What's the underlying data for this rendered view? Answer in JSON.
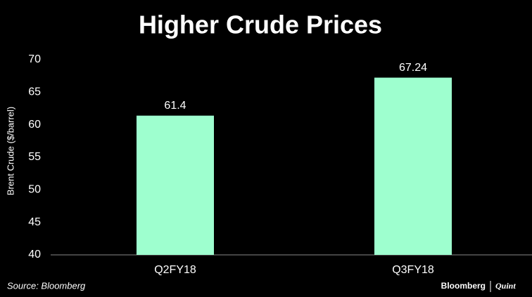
{
  "chart_data": {
    "type": "bar",
    "title": "Higher Crude Prices",
    "y_label": "Brent Crude ($/barrel)",
    "categories": [
      "Q2FY18",
      "Q3FY18"
    ],
    "values": [
      61.4,
      67.24
    ],
    "color": "#9effcf",
    "ylim": [
      40,
      70
    ],
    "yticks": [
      40,
      45,
      50,
      55,
      60,
      65,
      70
    ],
    "grid": false,
    "source": "Source: Bloomberg",
    "brand": [
      "Bloomberg",
      "Quint"
    ]
  }
}
